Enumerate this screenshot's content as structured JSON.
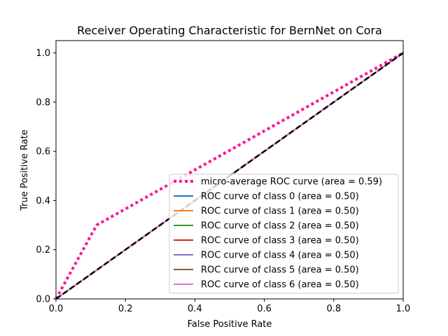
{
  "chart_data": {
    "type": "line",
    "title": "Receiver Operating Characteristic for BernNet on Cora",
    "xlabel": "False Positive Rate",
    "ylabel": "True Positive Rate",
    "xlim": [
      0.0,
      1.0
    ],
    "ylim": [
      0.0,
      1.05
    ],
    "xticks": [
      "0.0",
      "0.2",
      "0.4",
      "0.6",
      "0.8",
      "1.0"
    ],
    "yticks": [
      "0.0",
      "0.2",
      "0.4",
      "0.6",
      "0.8",
      "1.0"
    ],
    "grid": false,
    "legend_position": "lower-right",
    "series": [
      {
        "name": "micro-average ROC curve (area = 0.59)",
        "color": "#ff1493",
        "style": "dotted",
        "x": [
          0.0,
          0.117,
          1.0
        ],
        "y": [
          0.0,
          0.3,
          1.0
        ]
      },
      {
        "name": "ROC curve of class 0 (area = 0.50)",
        "color": "#1f77b4",
        "style": "solid",
        "x": [
          0.0,
          1.0
        ],
        "y": [
          0.0,
          1.0
        ]
      },
      {
        "name": "ROC curve of class 1 (area = 0.50)",
        "color": "#ff7f0e",
        "style": "solid",
        "x": [
          0.0,
          1.0
        ],
        "y": [
          0.0,
          1.0
        ]
      },
      {
        "name": "ROC curve of class 2 (area = 0.50)",
        "color": "#2ca02c",
        "style": "solid",
        "x": [
          0.0,
          1.0
        ],
        "y": [
          0.0,
          1.0
        ]
      },
      {
        "name": "ROC curve of class 3 (area = 0.50)",
        "color": "#d62728",
        "style": "solid",
        "x": [
          0.0,
          1.0
        ],
        "y": [
          0.0,
          1.0
        ]
      },
      {
        "name": "ROC curve of class 4 (area = 0.50)",
        "color": "#9467bd",
        "style": "solid",
        "x": [
          0.0,
          1.0
        ],
        "y": [
          0.0,
          1.0
        ]
      },
      {
        "name": "ROC curve of class 5 (area = 0.50)",
        "color": "#8c564b",
        "style": "solid",
        "x": [
          0.0,
          1.0
        ],
        "y": [
          0.0,
          1.0
        ]
      },
      {
        "name": "ROC curve of class 6 (area = 0.50)",
        "color": "#e377c2",
        "style": "solid",
        "x": [
          0.0,
          1.0
        ],
        "y": [
          0.0,
          1.0
        ]
      }
    ],
    "reference_line": {
      "color": "#000000",
      "style": "dashed",
      "x": [
        0.0,
        1.0
      ],
      "y": [
        0.0,
        1.0
      ]
    }
  }
}
